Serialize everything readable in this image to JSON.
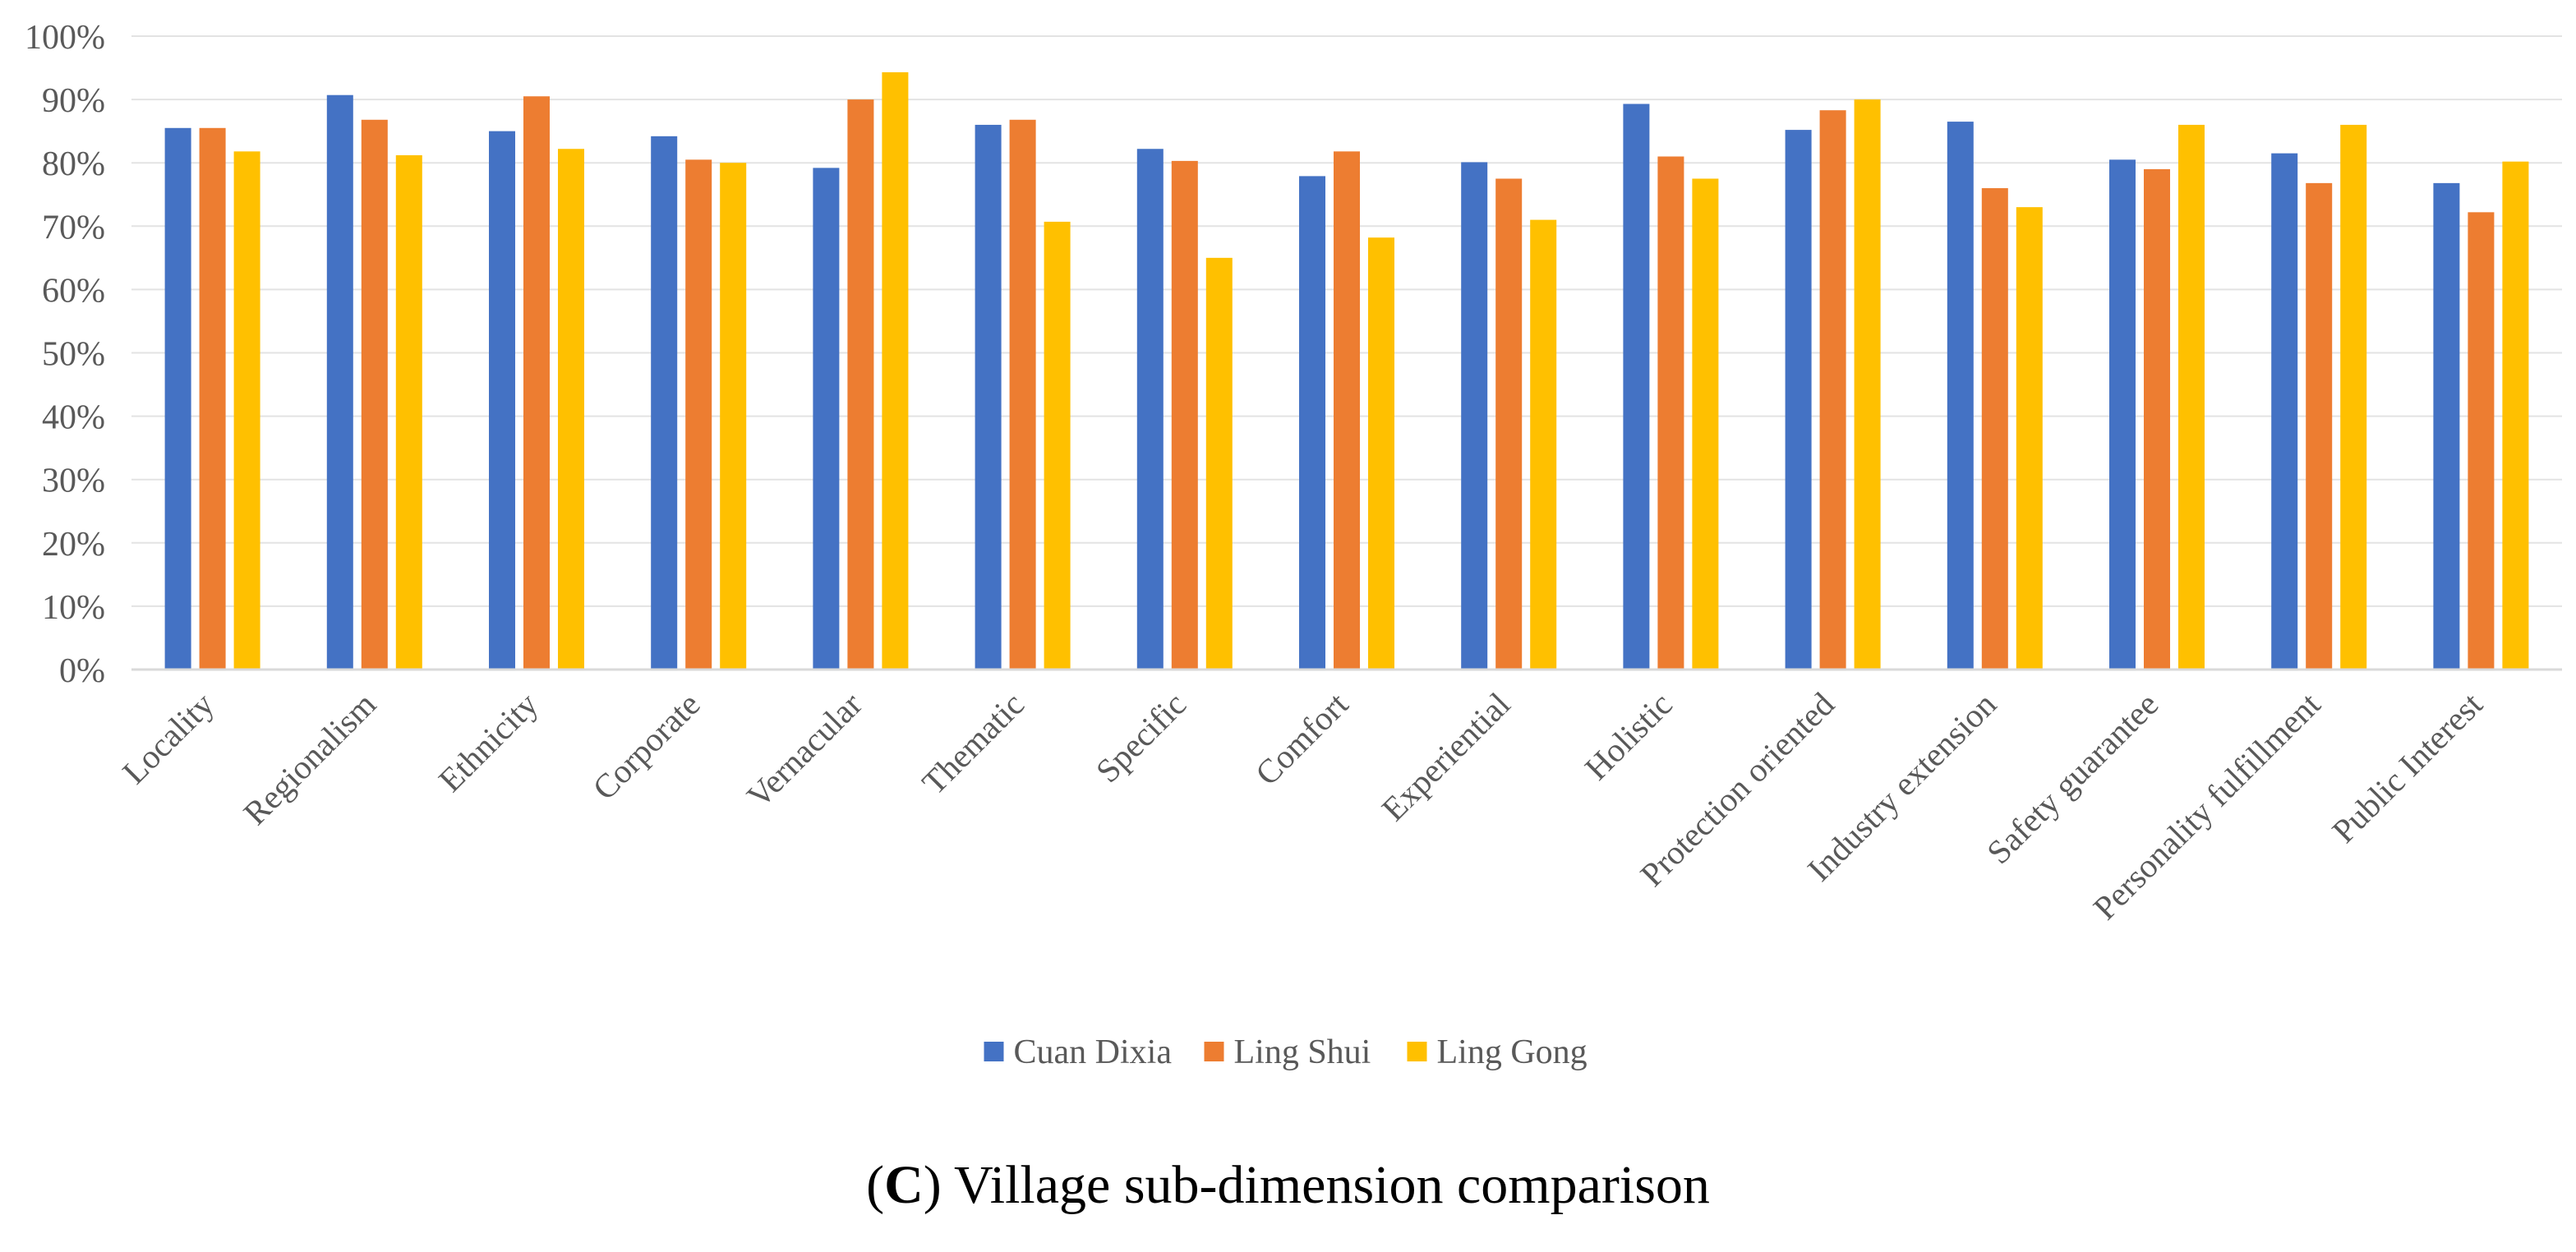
{
  "chart_data": {
    "type": "bar",
    "categories": [
      "Locality",
      "Regionalism",
      "Ethnicity",
      "Corporate",
      "Vernacular",
      "Thematic",
      "Specific",
      "Comfort",
      "Experiential",
      "Holistic",
      "Protection oriented",
      "Industry extension",
      "Safety guarantee",
      "Personality fulfillment",
      "Public Interest"
    ],
    "series": [
      {
        "name": "Cuan Dixia",
        "color": "#4472C4",
        "values": [
          85.5,
          90.7,
          85.0,
          84.2,
          79.2,
          86.0,
          82.2,
          77.9,
          80.1,
          89.3,
          85.2,
          86.5,
          80.5,
          81.5,
          76.8
        ]
      },
      {
        "name": "Ling Shui",
        "color": "#ED7D31",
        "values": [
          85.5,
          86.8,
          90.5,
          80.5,
          90.0,
          86.8,
          80.3,
          81.8,
          77.5,
          81.0,
          88.3,
          76.0,
          79.0,
          76.8,
          72.2
        ]
      },
      {
        "name": "Ling Gong",
        "color": "#FFC000",
        "values": [
          81.8,
          81.2,
          82.2,
          80.0,
          94.3,
          70.7,
          65.0,
          68.2,
          71.0,
          77.5,
          90.0,
          73.0,
          86.0,
          86.0,
          80.2
        ]
      }
    ],
    "yticks": [
      "0%",
      "10%",
      "20%",
      "30%",
      "40%",
      "50%",
      "60%",
      "70%",
      "80%",
      "90%",
      "100%"
    ],
    "ylim": [
      0,
      100
    ],
    "grid": true,
    "legend_position": "bottom"
  },
  "caption": {
    "open": "(",
    "letter": "C",
    "close": ")",
    "text": " Village sub-dimension comparison"
  }
}
